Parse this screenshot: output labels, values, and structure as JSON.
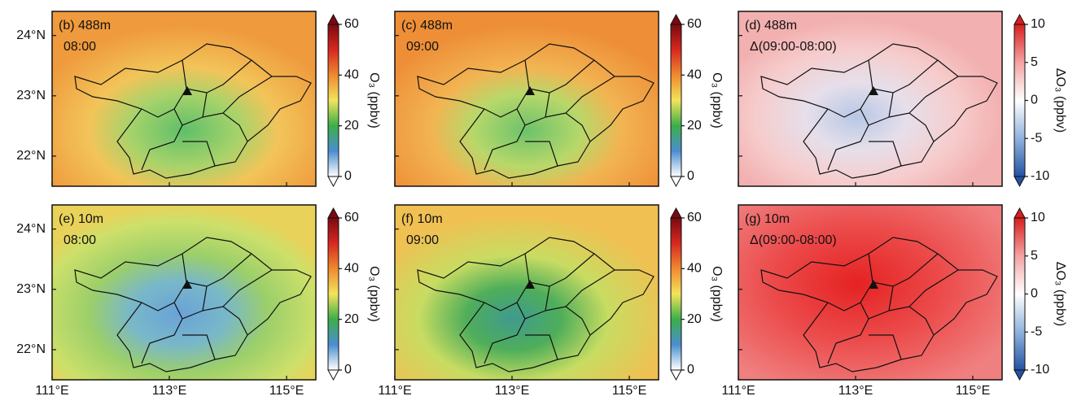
{
  "xlim": [
    111,
    115.5
  ],
  "ylim": [
    21.5,
    24.4
  ],
  "xticks": [
    {
      "value": 111,
      "label": "111°E"
    },
    {
      "value": 113,
      "label": "113°E"
    },
    {
      "value": 115,
      "label": "115°E"
    }
  ],
  "yticks": [
    {
      "value": 22,
      "label": "22°N"
    },
    {
      "value": 23,
      "label": "23°N"
    },
    {
      "value": 24,
      "label": "24°N"
    }
  ],
  "panels": [
    {
      "label": "(b) 488m",
      "time": "08:00",
      "colorbar": {
        "title": "O₃ (ppbv)",
        "lim": [
          0,
          60
        ],
        "ticks": [
          0,
          20,
          40,
          60
        ],
        "colors": [
          "#ffffff",
          "#4a8fd0",
          "#3cae4a",
          "#f2e45a",
          "#ef8a2f",
          "#d7281f",
          "#7a0a10"
        ]
      }
    },
    {
      "label": "(c) 488m",
      "time": "09:00",
      "colorbar": {
        "title": "O₃ (ppbv)",
        "lim": [
          0,
          60
        ],
        "ticks": [
          0,
          20,
          40,
          60
        ],
        "colors": [
          "#ffffff",
          "#4a8fd0",
          "#3cae4a",
          "#f2e45a",
          "#ef8a2f",
          "#d7281f",
          "#7a0a10"
        ]
      }
    },
    {
      "label": "(d) 488m",
      "time": "Δ(09:00-08:00)",
      "colorbar": {
        "title": "ΔO₃ (ppbv)",
        "lim": [
          -10,
          10
        ],
        "ticks": [
          -10,
          -5,
          0,
          5,
          10
        ],
        "colors": [
          "#2452a4",
          "#8fb2dc",
          "#ffffff",
          "#f4a3a3",
          "#d81e1e"
        ]
      }
    },
    {
      "label": "(e) 10m",
      "time": "08:00",
      "colorbar": {
        "title": "O₃ (ppbv)",
        "lim": [
          0,
          60
        ],
        "ticks": [
          0,
          20,
          40,
          60
        ],
        "colors": [
          "#ffffff",
          "#4a8fd0",
          "#3cae4a",
          "#f2e45a",
          "#ef8a2f",
          "#d7281f",
          "#7a0a10"
        ]
      }
    },
    {
      "label": "(f) 10m",
      "time": "09:00",
      "colorbar": {
        "title": "O₃ (ppbv)",
        "lim": [
          0,
          60
        ],
        "ticks": [
          0,
          20,
          40,
          60
        ],
        "colors": [
          "#ffffff",
          "#4a8fd0",
          "#3cae4a",
          "#f2e45a",
          "#ef8a2f",
          "#d7281f",
          "#7a0a10"
        ]
      }
    },
    {
      "label": "(g) 10m",
      "time": "Δ(09:00-08:00)",
      "colorbar": {
        "title": "ΔO₃ (ppbv)",
        "lim": [
          -10,
          10
        ],
        "ticks": [
          -10,
          -5,
          0,
          5,
          10
        ],
        "colors": [
          "#2452a4",
          "#8fb2dc",
          "#ffffff",
          "#f4a3a3",
          "#d81e1e"
        ]
      }
    }
  ]
}
